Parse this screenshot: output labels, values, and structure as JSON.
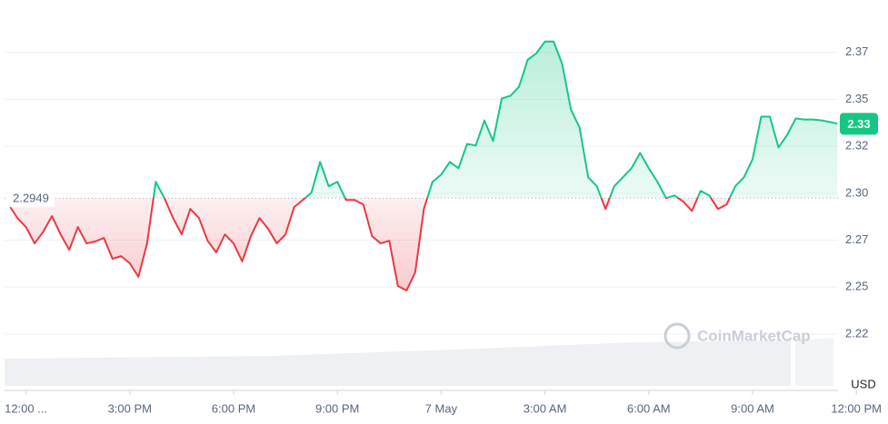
{
  "chart_data": {
    "type": "line",
    "x": [
      -0.5,
      -0.25,
      0,
      0.25,
      0.5,
      0.75,
      1,
      1.25,
      1.5,
      1.75,
      2,
      2.25,
      2.5,
      2.75,
      3,
      3.25,
      3.5,
      3.75,
      4,
      4.25,
      4.5,
      4.75,
      5,
      5.25,
      5.5,
      5.75,
      6,
      6.25,
      6.5,
      6.75,
      7,
      7.25,
      7.5,
      7.75,
      8,
      8.25,
      8.5,
      8.75,
      9,
      9.25,
      9.5,
      9.75,
      10,
      10.25,
      10.5,
      10.75,
      11,
      11.25,
      11.5,
      11.75,
      12,
      12.25,
      12.5,
      12.75,
      13,
      13.25,
      13.5,
      13.75,
      14,
      14.25,
      14.5,
      14.75,
      15,
      15.25,
      15.5,
      15.75,
      16,
      16.25,
      16.5,
      16.75,
      17,
      17.25,
      17.5,
      17.75,
      18,
      18.25,
      18.5,
      18.75,
      19,
      19.25,
      19.5,
      19.75,
      20,
      20.25,
      20.5,
      20.75,
      21,
      21.25,
      21.5,
      21.75,
      22,
      22.25,
      22.5,
      22.75,
      23,
      23.25,
      23.45
    ],
    "values": [
      2.2915,
      2.2843,
      2.2795,
      2.2708,
      2.2771,
      2.2853,
      2.2756,
      2.2674,
      2.2795,
      2.2708,
      2.2718,
      2.2737,
      2.2626,
      2.264,
      2.2602,
      2.253,
      2.2708,
      2.3036,
      2.2949,
      2.2843,
      2.2756,
      2.2891,
      2.2843,
      2.2722,
      2.266,
      2.2756,
      2.2708,
      2.2612,
      2.2747,
      2.2843,
      2.2785,
      2.2708,
      2.2756,
      2.2901,
      2.2939,
      2.2978,
      2.3142,
      2.3012,
      2.3036,
      2.2939,
      2.2939,
      2.2915,
      2.2747,
      2.2708,
      2.2722,
      2.2481,
      2.2457,
      2.2554,
      2.2891,
      2.3036,
      2.3074,
      2.3142,
      2.3108,
      2.3238,
      2.3229,
      2.3363,
      2.3253,
      2.3479,
      2.3494,
      2.3542,
      2.3686,
      2.372,
      2.3783,
      2.3783,
      2.3662,
      2.3421,
      2.3325,
      2.306,
      2.3012,
      2.2891,
      2.3012,
      2.306,
      2.3108,
      2.319,
      2.3108,
      2.3036,
      2.2949,
      2.2963,
      2.293,
      2.2881,
      2.2988,
      2.2963,
      2.2891,
      2.2915,
      2.3012,
      2.306,
      2.3156,
      2.3383,
      2.3383,
      2.3219,
      2.3286,
      2.3373,
      2.3368,
      2.3368,
      2.3363,
      2.3354,
      2.3345
    ],
    "up_color": "#16c784",
    "down_color": "#ea3943",
    "baseline": 2.2949,
    "current": {
      "value": 2.3345,
      "label": "2.33"
    },
    "currency": "USD",
    "watermark": "CoinMarketCap",
    "xlim": [
      -0.62,
      23.47
    ],
    "ylim": [
      2.207,
      2.398
    ],
    "xticks": [
      {
        "value": 0,
        "label": "12:00 ..."
      },
      {
        "value": 3,
        "label": "3:00 PM"
      },
      {
        "value": 6,
        "label": "6:00 PM"
      },
      {
        "value": 9,
        "label": "9:00 PM"
      },
      {
        "value": 12,
        "label": "7 May"
      },
      {
        "value": 15,
        "label": "3:00 AM"
      },
      {
        "value": 18,
        "label": "6:00 AM"
      },
      {
        "value": 21,
        "label": "9:00 AM"
      },
      {
        "value": 24,
        "label": "12:00 PM"
      }
    ],
    "yticks": [
      {
        "value": 2.2225,
        "label": "2.22"
      },
      {
        "value": 2.2475,
        "label": "2.25"
      },
      {
        "value": 2.2725,
        "label": "2.27"
      },
      {
        "value": 2.2975,
        "label": "2.30"
      },
      {
        "value": 2.3225,
        "label": "2.32"
      },
      {
        "value": 2.3475,
        "label": "2.35"
      },
      {
        "value": 2.3725,
        "label": "2.37"
      }
    ],
    "grid": true
  }
}
